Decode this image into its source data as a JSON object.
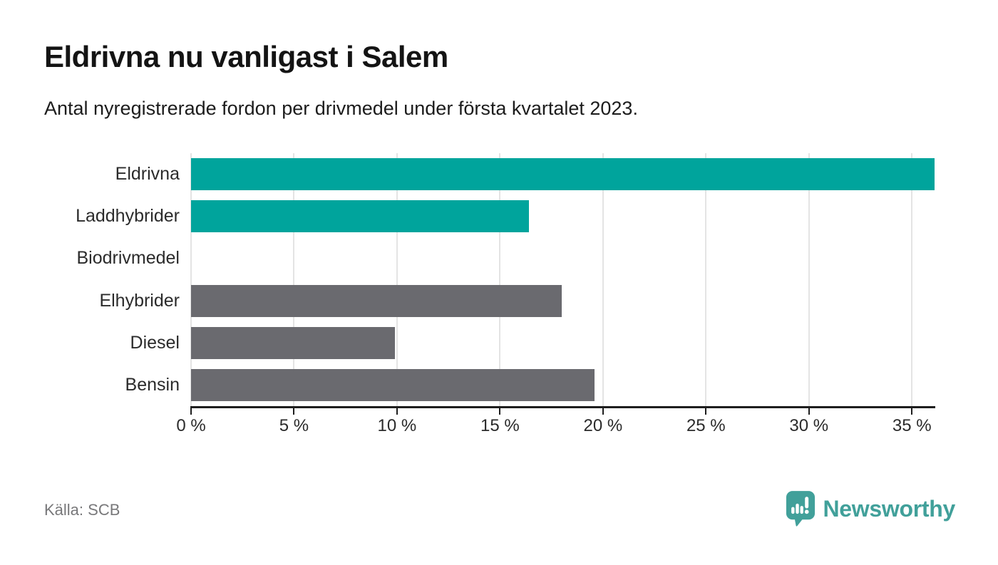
{
  "title": "Eldrivna nu vanligast i Salem",
  "subtitle": "Antal nyregistrerade fordon per drivmedel under första kvartalet 2023.",
  "source": "Källa: SCB",
  "branding": {
    "name": "Newsworthy",
    "logo_icon": "speech-bubble-bar-chart-icon",
    "color": "#41a09a"
  },
  "colors": {
    "highlight_bar": "#00a49c",
    "default_bar": "#6a6a6f",
    "axis": "#1e1e1e",
    "gridline": "#e4e4e4",
    "text": "#1c1c1c",
    "muted_text": "#78787a"
  },
  "chart_data": {
    "type": "bar",
    "orientation": "horizontal",
    "title": "Eldrivna nu vanligast i Salem",
    "subtitle": "Antal nyregistrerade fordon per drivmedel under första kvartalet 2023.",
    "categories": [
      "Eldrivna",
      "Laddhybrider",
      "Biodrivmedel",
      "Elhybrider",
      "Diesel",
      "Bensin"
    ],
    "values": [
      36.1,
      16.4,
      0,
      18.0,
      9.9,
      19.6
    ],
    "unit": "%",
    "highlighted_categories": [
      "Eldrivna",
      "Laddhybrider"
    ],
    "xlabel": "",
    "ylabel": "",
    "xlim": [
      0,
      36.1
    ],
    "x_tick_values": [
      0,
      5,
      10,
      15,
      20,
      25,
      30,
      35
    ],
    "x_tick_labels": [
      "0 %",
      "5 %",
      "10 %",
      "15 %",
      "20 %",
      "25 %",
      "30 %",
      "35 %"
    ],
    "grid": "vertical-gridlines-on",
    "legend": "none"
  }
}
